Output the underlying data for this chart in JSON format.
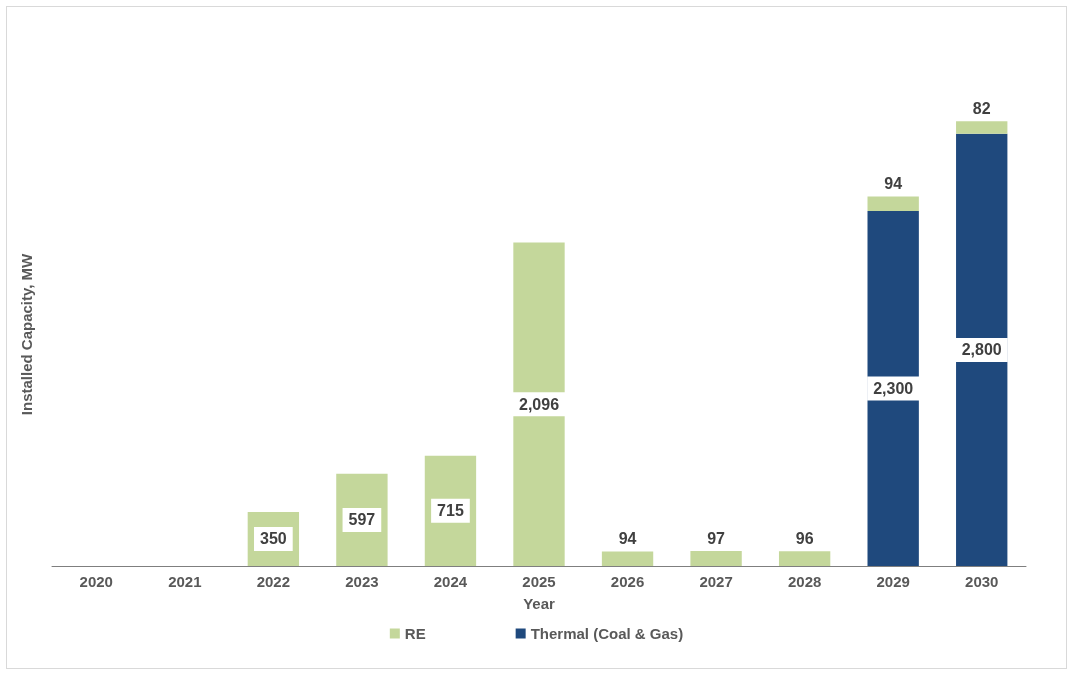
{
  "chart_data": {
    "type": "bar",
    "stacked": true,
    "xlabel": "Year",
    "ylabel": "Installed Capacity, MW",
    "categories": [
      "2020",
      "2021",
      "2022",
      "2023",
      "2024",
      "2025",
      "2026",
      "2027",
      "2028",
      "2029",
      "2030"
    ],
    "series": [
      {
        "name": "Thermal (Coal & Gas)",
        "color": "#1f497d",
        "values": [
          null,
          null,
          null,
          null,
          null,
          null,
          null,
          null,
          null,
          2300,
          2800
        ],
        "value_labels": [
          null,
          null,
          null,
          null,
          null,
          null,
          null,
          null,
          null,
          "2,300",
          "2,800"
        ]
      },
      {
        "name": "RE",
        "color": "#c4d79b",
        "values": [
          null,
          null,
          350,
          597,
          715,
          2096,
          94,
          97,
          96,
          94,
          82
        ],
        "value_labels": [
          null,
          null,
          "350",
          "597",
          "715",
          "2,096",
          "94",
          "97",
          "96",
          "94",
          "82"
        ]
      }
    ],
    "legend": "bottom"
  }
}
